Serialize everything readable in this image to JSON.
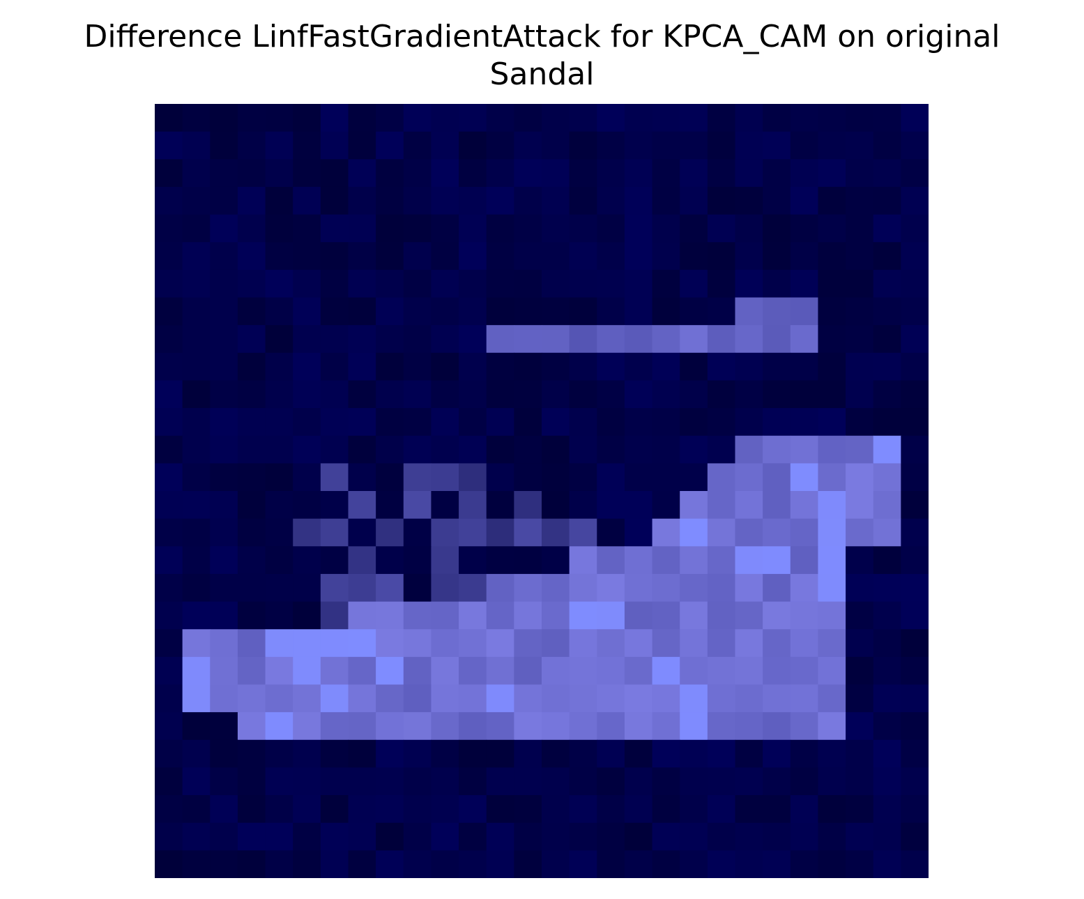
{
  "chart_data": {
    "type": "heatmap",
    "title_lines": [
      "Difference LinfFastGradientAttack for KPCA_CAM on original",
      "Sandal"
    ],
    "rows": 28,
    "cols": 28,
    "axes": "off",
    "colors": {
      "dark": "#00003a",
      "deep_blue": "#000080",
      "mid": "#4a4aa6",
      "light": "#7f7fe6",
      "highlight": "#7f8cff"
    }
  }
}
